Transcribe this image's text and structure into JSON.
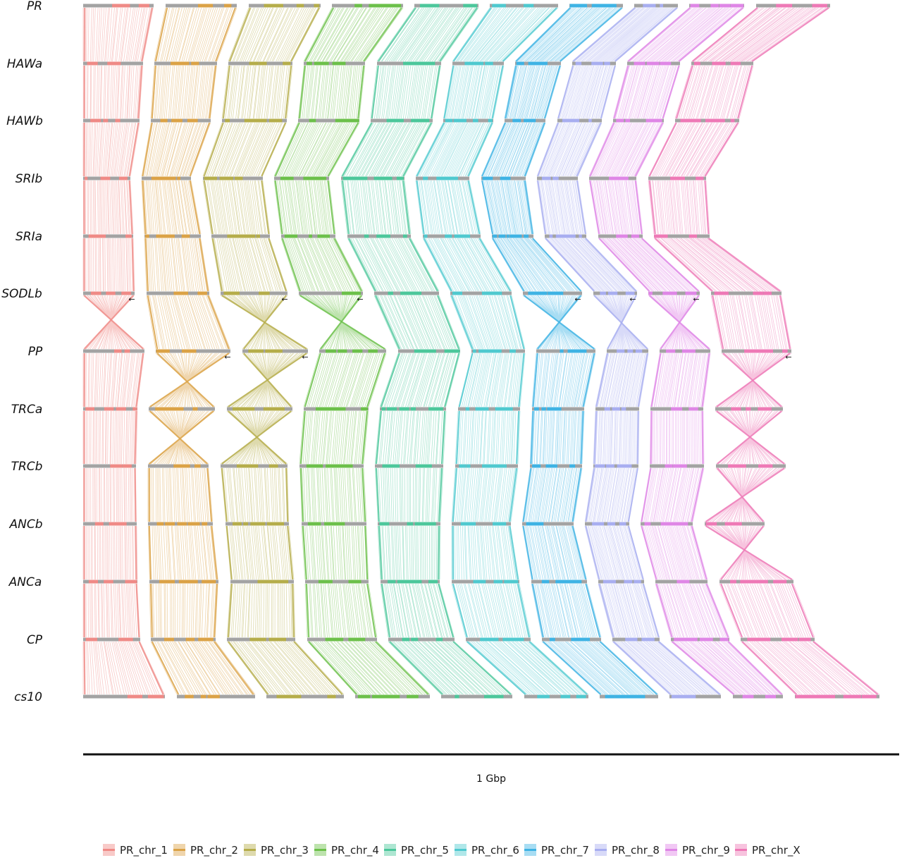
{
  "genomes": [
    "PR",
    "HAWa",
    "HAWb",
    "SRIb",
    "SRIa",
    "SODLb",
    "PP",
    "TRCa",
    "TRCb",
    "ANCb",
    "ANCa",
    "CP",
    "cs10"
  ],
  "scale_bar": {
    "label": "1 Gbp"
  },
  "legend": [
    {
      "label": "PR_chr_1",
      "color": "#ef8a86"
    },
    {
      "label": "PR_chr_2",
      "color": "#dba246"
    },
    {
      "label": "PR_chr_3",
      "color": "#b5ad4a"
    },
    {
      "label": "PR_chr_4",
      "color": "#6cc04a"
    },
    {
      "label": "PR_chr_5",
      "color": "#4cc79b"
    },
    {
      "label": "PR_chr_6",
      "color": "#4fc9cf"
    },
    {
      "label": "PR_chr_7",
      "color": "#3eb3e4"
    },
    {
      "label": "PR_chr_8",
      "color": "#a8aef0"
    },
    {
      "label": "PR_chr_9",
      "color": "#df86e6"
    },
    {
      "label": "PR_chr_X",
      "color": "#ee79b6"
    }
  ],
  "inversion_marker": "←"
}
